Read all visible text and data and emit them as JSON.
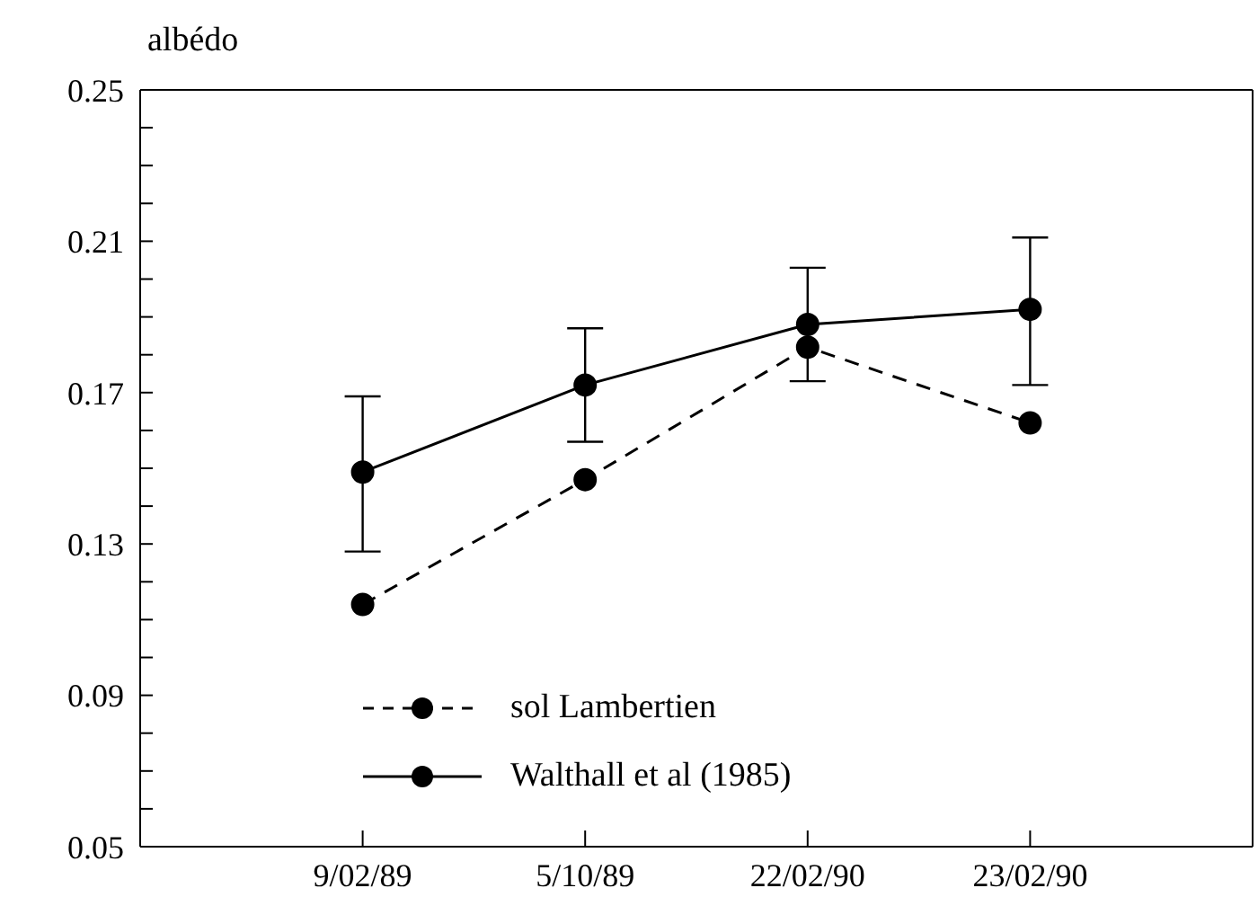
{
  "chart_data": {
    "type": "line",
    "ylabel": "albédo",
    "categories": [
      "9/02/89",
      "5/10/89",
      "22/02/90",
      "23/02/90"
    ],
    "series": [
      {
        "name": "sol  Lambertien",
        "color": "#000000",
        "line_style": "dashed",
        "values": [
          0.114,
          0.147,
          0.182,
          0.162
        ]
      },
      {
        "name": "Walthall et al  (1985)",
        "color": "#000000",
        "line_style": "solid",
        "values": [
          0.149,
          0.172,
          0.188,
          0.192
        ],
        "errors": [
          [
            0.128,
            0.169
          ],
          [
            0.157,
            0.187
          ],
          [
            0.173,
            0.203
          ],
          [
            0.172,
            0.211
          ]
        ]
      }
    ],
    "ylim": [
      0.05,
      0.25
    ],
    "yticks": [
      0.05,
      {
        "value": 0.06,
        "label": null
      },
      {
        "value": 0.07,
        "label": null
      },
      {
        "value": 0.08,
        "label": null
      },
      0.09,
      {
        "value": 0.1,
        "label": null
      },
      {
        "value": 0.11,
        "label": null
      },
      {
        "value": 0.12,
        "label": null
      },
      0.13,
      {
        "value": 0.14,
        "label": null
      },
      {
        "value": 0.15,
        "label": null
      },
      {
        "value": 0.16,
        "label": null
      },
      0.17,
      {
        "value": 0.18,
        "label": null
      },
      {
        "value": 0.19,
        "label": null
      },
      {
        "value": 0.2,
        "label": null
      },
      0.21,
      {
        "value": 0.22,
        "label": null
      },
      {
        "value": 0.23,
        "label": null
      },
      {
        "value": 0.24,
        "label": null
      },
      0.25
    ],
    "marker": "circle",
    "grid": false,
    "legend": "bottom left"
  }
}
